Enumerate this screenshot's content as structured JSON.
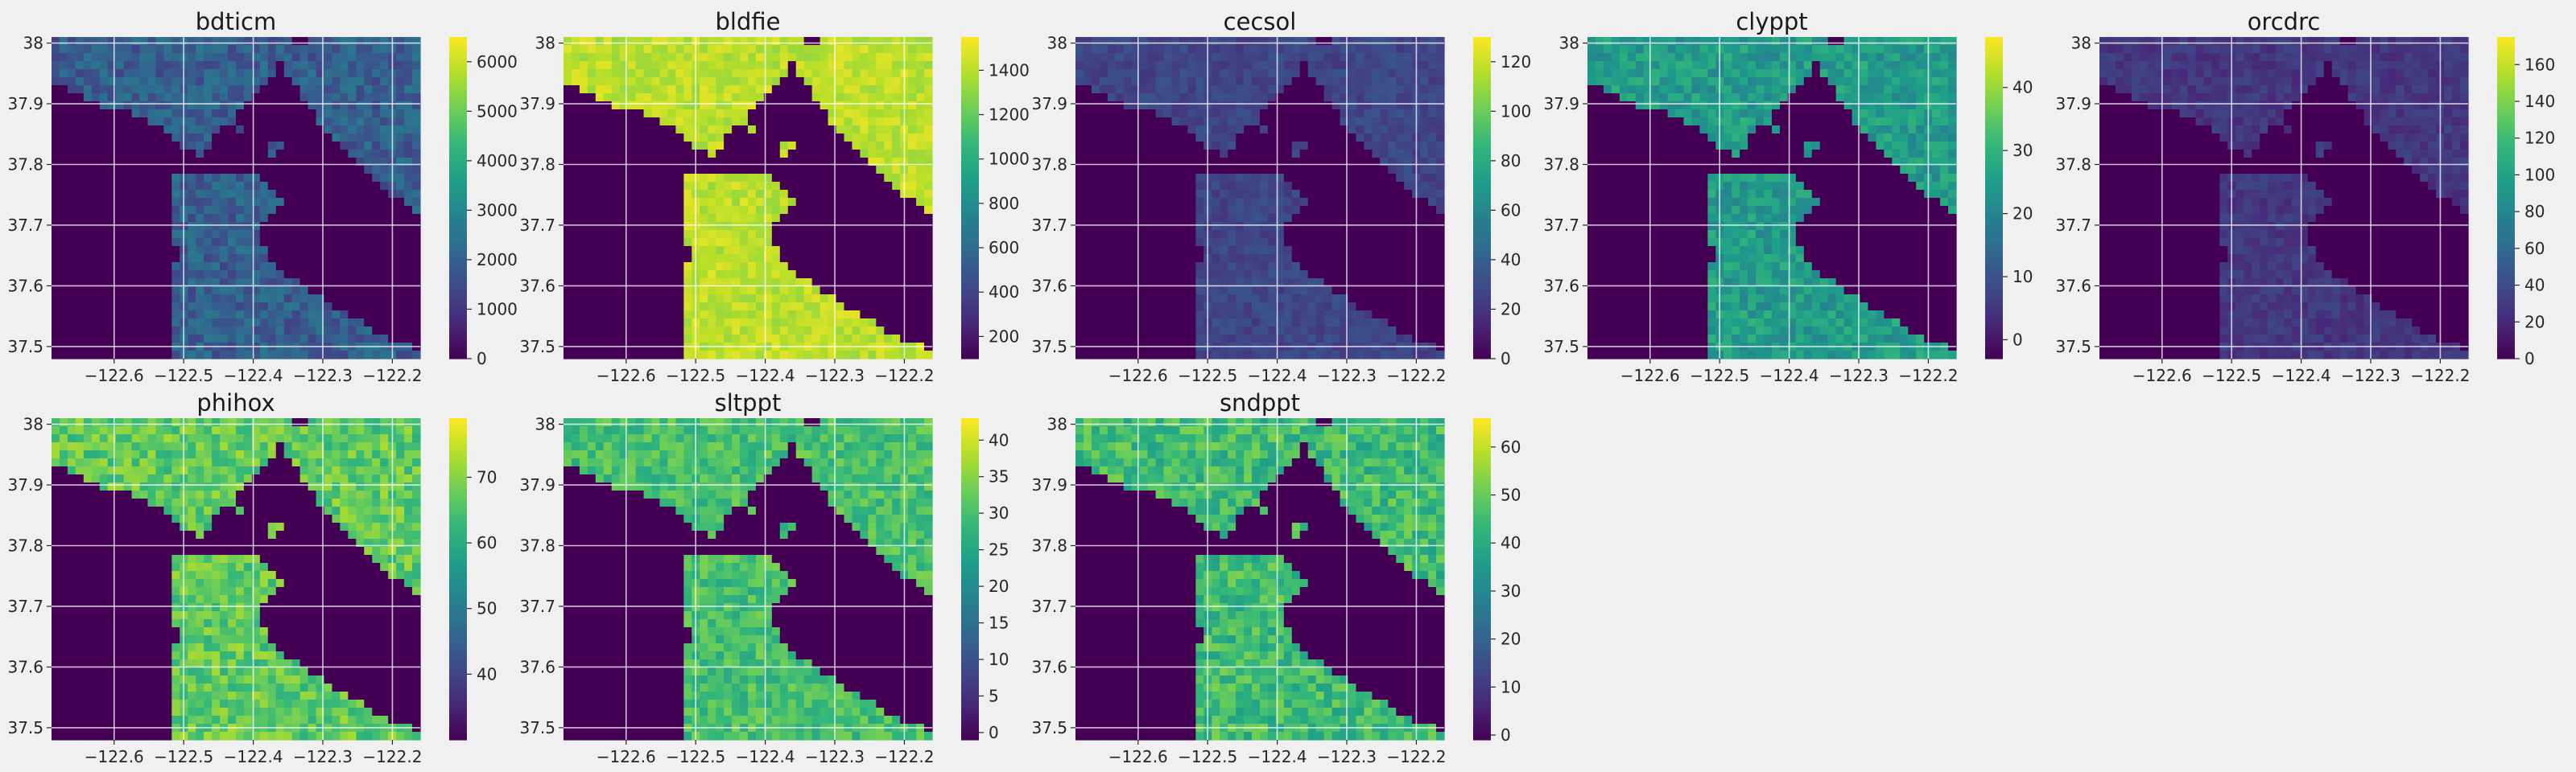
{
  "chart_data": [
    {
      "type": "heatmap",
      "title": "bdticm",
      "colorbar": {
        "min": 0,
        "max": 6500,
        "ticks": [
          0,
          1000,
          2000,
          3000,
          4000,
          5000,
          6000
        ]
      },
      "x_range": [
        -122.69,
        -122.16
      ],
      "y_range": [
        37.48,
        38.01
      ],
      "xticks": [
        -122.6,
        -122.5,
        -122.4,
        -122.3,
        -122.2
      ],
      "yticks": [
        37.5,
        37.6,
        37.7,
        37.8,
        37.9,
        38.0
      ],
      "land_level": 0.3,
      "variation": 0.1
    },
    {
      "type": "heatmap",
      "title": "bldfie",
      "colorbar": {
        "min": 100,
        "max": 1550,
        "ticks": [
          200,
          400,
          600,
          800,
          1000,
          1200,
          1400
        ]
      },
      "x_range": [
        -122.69,
        -122.16
      ],
      "y_range": [
        37.48,
        38.01
      ],
      "xticks": [
        -122.6,
        -122.5,
        -122.4,
        -122.3,
        -122.2
      ],
      "yticks": [
        37.5,
        37.6,
        37.7,
        37.8,
        37.9,
        38.0
      ],
      "land_level": 0.9,
      "variation": 0.06
    },
    {
      "type": "heatmap",
      "title": "cecsol",
      "colorbar": {
        "min": 0,
        "max": 130,
        "ticks": [
          0,
          20,
          40,
          60,
          80,
          100,
          120
        ]
      },
      "x_range": [
        -122.69,
        -122.16
      ],
      "y_range": [
        37.48,
        38.01
      ],
      "xticks": [
        -122.6,
        -122.5,
        -122.4,
        -122.3,
        -122.2
      ],
      "yticks": [
        37.5,
        37.6,
        37.7,
        37.8,
        37.9,
        38.0
      ],
      "land_level": 0.21,
      "variation": 0.05
    },
    {
      "type": "heatmap",
      "title": "clyppt",
      "colorbar": {
        "min": -3,
        "max": 48,
        "ticks": [
          0,
          10,
          20,
          30,
          40
        ]
      },
      "x_range": [
        -122.69,
        -122.16
      ],
      "y_range": [
        37.48,
        38.01
      ],
      "xticks": [
        -122.6,
        -122.5,
        -122.4,
        -122.3,
        -122.2
      ],
      "yticks": [
        37.5,
        37.6,
        37.7,
        37.8,
        37.9,
        38.0
      ],
      "land_level": 0.55,
      "variation": 0.1
    },
    {
      "type": "heatmap",
      "title": "orcdrc",
      "colorbar": {
        "min": 0,
        "max": 175,
        "ticks": [
          0,
          20,
          40,
          60,
          80,
          100,
          120,
          140,
          160
        ]
      },
      "x_range": [
        -122.69,
        -122.16
      ],
      "y_range": [
        37.48,
        38.01
      ],
      "xticks": [
        -122.6,
        -122.5,
        -122.4,
        -122.3,
        -122.2
      ],
      "yticks": [
        37.5,
        37.6,
        37.7,
        37.8,
        37.9,
        38.0
      ],
      "land_level": 0.16,
      "variation": 0.05
    },
    {
      "type": "heatmap",
      "title": "phihox",
      "colorbar": {
        "min": 30,
        "max": 79,
        "ticks": [
          40,
          50,
          60,
          70
        ]
      },
      "x_range": [
        -122.69,
        -122.16
      ],
      "y_range": [
        37.48,
        38.01
      ],
      "xticks": [
        -122.6,
        -122.5,
        -122.4,
        -122.3,
        -122.2
      ],
      "yticks": [
        37.5,
        37.6,
        37.7,
        37.8,
        37.9,
        38.0
      ],
      "land_level": 0.75,
      "variation": 0.12
    },
    {
      "type": "heatmap",
      "title": "sltppt",
      "colorbar": {
        "min": -1,
        "max": 43,
        "ticks": [
          0,
          5,
          10,
          15,
          20,
          25,
          30,
          35,
          40
        ]
      },
      "x_range": [
        -122.69,
        -122.16
      ],
      "y_range": [
        37.48,
        38.01
      ],
      "xticks": [
        -122.6,
        -122.5,
        -122.4,
        -122.3,
        -122.2
      ],
      "yticks": [
        37.5,
        37.6,
        37.7,
        37.8,
        37.9,
        38.0
      ],
      "land_level": 0.7,
      "variation": 0.1
    },
    {
      "type": "heatmap",
      "title": "sndppt",
      "colorbar": {
        "min": -1,
        "max": 66,
        "ticks": [
          0,
          10,
          20,
          30,
          40,
          50,
          60
        ]
      },
      "x_range": [
        -122.69,
        -122.16
      ],
      "y_range": [
        37.48,
        38.01
      ],
      "xticks": [
        -122.6,
        -122.5,
        -122.4,
        -122.3,
        -122.2
      ],
      "yticks": [
        37.5,
        37.6,
        37.7,
        37.8,
        37.9,
        38.0
      ],
      "land_level": 0.68,
      "variation": 0.12
    }
  ]
}
